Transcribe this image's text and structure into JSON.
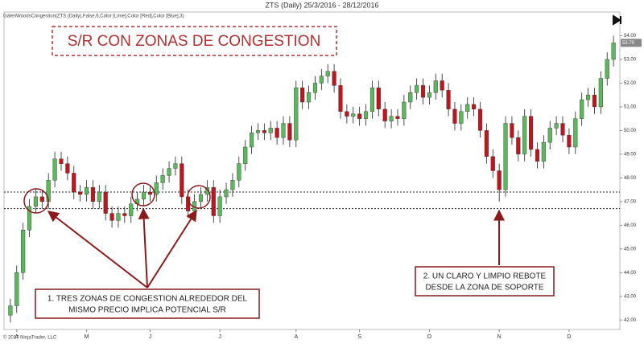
{
  "chart_data": {
    "type": "candlestick",
    "title": "ZTS (Daily)  25/3/2016 - 28/12/2016",
    "indicator_label": "GalenWoodsCongestion(ZTS (Daily),False,6,Color [Lime],Color [Red],Color [Blue],3)",
    "headline": "S/R CON ZONAS DE CONGESTION",
    "annotations": [
      [
        "1. TRES ZONAS DE CONGESTION ALREDEDOR DEL",
        "MISMO PRECIO IMPLICA POTENCIAL S/R"
      ],
      [
        "2. UN CLARO Y LIMPIO REBOTE",
        "DESDE LA ZONA DE SOPORTE"
      ]
    ],
    "copyright": "© 2017 NinjaTrader, LLC",
    "up_color": "#5cb85c",
    "down_color": "#c0141e",
    "xlim": [
      -1,
      96
    ],
    "xticks": [
      {
        "value": 1,
        "label": "A"
      },
      {
        "value": 12,
        "label": "M"
      },
      {
        "value": 22,
        "label": "J"
      },
      {
        "value": 33,
        "label": "J"
      },
      {
        "value": 45,
        "label": "A"
      },
      {
        "value": 55,
        "label": "S"
      },
      {
        "value": 66,
        "label": "O"
      },
      {
        "value": 77,
        "label": "N"
      },
      {
        "value": 88,
        "label": "D"
      }
    ],
    "ylim": [
      41.6,
      55.0
    ],
    "yticks": [
      {
        "value": 42,
        "label": "42.00"
      },
      {
        "value": 43,
        "label": "43.00"
      },
      {
        "value": 44,
        "label": "44.00"
      },
      {
        "value": 45,
        "label": "45.00"
      },
      {
        "value": 46,
        "label": "46.00"
      },
      {
        "value": 47,
        "label": "47.00"
      },
      {
        "value": 48,
        "label": "48.00"
      },
      {
        "value": 49,
        "label": "49.00"
      },
      {
        "value": 50,
        "label": "50.00"
      },
      {
        "value": 51,
        "label": "51.00"
      },
      {
        "value": 52,
        "label": "52.00"
      },
      {
        "value": 53,
        "label": "53.00"
      },
      {
        "value": 54,
        "label": "54.00"
      }
    ],
    "hlines": [
      47.4,
      46.7
    ],
    "last_price": {
      "value": 53.7,
      "label": "53.70"
    },
    "open": [
      42.2,
      42.6,
      44.0,
      45.8,
      46.8,
      47.2,
      47.0,
      47.9,
      48.8,
      48.6,
      48.2,
      47.4,
      47.3,
      47.6,
      47.0,
      47.4,
      46.5,
      46.2,
      46.5,
      46.4,
      46.9,
      47.1,
      47.4,
      47.3,
      47.8,
      48.1,
      48.4,
      48.6,
      47.2,
      46.6,
      47.0,
      47.3,
      47.6,
      46.4,
      47.2,
      47.5,
      47.9,
      48.6,
      49.3,
      49.9,
      50.0,
      49.9,
      50.1,
      49.7,
      50.3,
      49.6,
      51.8,
      51.2,
      51.6,
      52.0,
      52.3,
      52.5,
      51.9,
      50.8,
      50.6,
      50.7,
      50.5,
      50.8,
      51.8,
      50.9,
      50.4,
      50.6,
      50.5,
      51.2,
      51.6,
      51.9,
      51.4,
      51.6,
      52.1,
      51.7,
      50.9,
      50.3,
      50.8,
      51.1,
      50.9,
      50.0,
      48.9,
      48.3,
      47.5,
      50.3,
      49.7,
      49.0,
      50.6,
      49.2,
      48.7,
      49.5,
      50.1,
      50.3,
      49.8,
      49.3,
      50.5,
      51.3,
      51.5,
      51.0,
      52.2,
      53.0
    ],
    "high": [
      42.9,
      44.3,
      46.1,
      47.1,
      47.5,
      47.5,
      48.2,
      49.1,
      49.1,
      48.9,
      48.5,
      47.7,
      47.9,
      47.9,
      47.7,
      47.7,
      46.8,
      46.8,
      46.8,
      47.2,
      47.4,
      47.7,
      47.7,
      48.1,
      48.4,
      48.7,
      48.9,
      48.9,
      47.5,
      47.3,
      47.6,
      47.9,
      47.9,
      47.5,
      47.8,
      48.2,
      48.9,
      49.6,
      50.2,
      50.3,
      50.3,
      50.4,
      50.4,
      50.6,
      50.6,
      52.1,
      52.1,
      51.9,
      52.3,
      52.6,
      52.8,
      52.8,
      52.2,
      51.1,
      51.0,
      51.0,
      51.1,
      52.1,
      52.1,
      51.2,
      50.9,
      50.9,
      51.5,
      51.9,
      52.2,
      52.2,
      51.9,
      52.4,
      52.4,
      52.0,
      51.2,
      51.1,
      51.4,
      51.4,
      51.2,
      50.3,
      49.2,
      48.6,
      50.6,
      50.6,
      50.0,
      50.9,
      50.9,
      49.5,
      49.8,
      50.4,
      50.6,
      50.6,
      50.1,
      50.8,
      51.6,
      51.8,
      51.8,
      52.5,
      53.3,
      54.0
    ],
    "low": [
      41.9,
      42.3,
      43.7,
      45.5,
      46.5,
      46.7,
      46.7,
      47.6,
      48.3,
      47.9,
      47.1,
      47.0,
      47.0,
      46.7,
      46.7,
      46.2,
      45.9,
      45.9,
      46.1,
      46.1,
      46.6,
      46.8,
      47.0,
      47.0,
      47.5,
      47.8,
      48.1,
      46.9,
      46.3,
      46.3,
      46.7,
      47.0,
      46.1,
      46.1,
      46.9,
      47.2,
      47.6,
      48.3,
      49.0,
      49.6,
      49.6,
      49.6,
      49.4,
      49.4,
      49.3,
      49.3,
      50.9,
      50.9,
      51.3,
      51.7,
      52.0,
      51.6,
      50.5,
      50.3,
      50.3,
      50.2,
      50.2,
      50.5,
      50.6,
      50.1,
      50.1,
      50.2,
      50.2,
      50.9,
      51.3,
      51.1,
      51.1,
      51.3,
      51.4,
      50.6,
      50.0,
      50.0,
      50.5,
      50.6,
      49.7,
      48.6,
      48.0,
      47.0,
      47.2,
      49.4,
      48.7,
      48.7,
      48.9,
      48.4,
      48.4,
      49.2,
      49.8,
      49.5,
      49.0,
      49.0,
      50.2,
      51.0,
      50.7,
      50.7,
      51.9,
      52.7
    ],
    "close": [
      42.6,
      44.0,
      45.8,
      46.8,
      47.2,
      47.0,
      47.9,
      48.8,
      48.6,
      48.2,
      47.4,
      47.3,
      47.6,
      47.0,
      47.4,
      46.5,
      46.2,
      46.5,
      46.4,
      46.9,
      47.1,
      47.4,
      47.3,
      47.8,
      48.1,
      48.4,
      48.6,
      47.2,
      46.6,
      47.0,
      47.3,
      47.6,
      46.4,
      47.2,
      47.5,
      47.9,
      48.6,
      49.3,
      49.9,
      50.0,
      49.9,
      50.1,
      49.7,
      50.3,
      49.6,
      51.8,
      51.2,
      51.6,
      52.0,
      52.3,
      52.5,
      51.9,
      50.8,
      50.6,
      50.7,
      50.5,
      50.8,
      51.8,
      50.9,
      50.4,
      50.6,
      50.5,
      51.2,
      51.6,
      51.9,
      51.4,
      51.6,
      52.1,
      51.7,
      50.9,
      50.3,
      50.8,
      51.1,
      50.9,
      50.0,
      48.9,
      48.3,
      47.5,
      50.3,
      49.7,
      49.0,
      50.6,
      49.2,
      48.7,
      49.5,
      50.1,
      50.3,
      49.8,
      49.3,
      50.5,
      51.3,
      51.5,
      51.0,
      52.2,
      53.0,
      53.7
    ]
  }
}
